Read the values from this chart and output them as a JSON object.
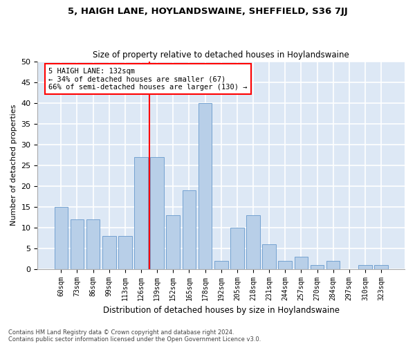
{
  "title1": "5, HAIGH LANE, HOYLANDSWAINE, SHEFFIELD, S36 7JJ",
  "title2": "Size of property relative to detached houses in Hoylandswaine",
  "xlabel": "Distribution of detached houses by size in Hoylandswaine",
  "ylabel": "Number of detached properties",
  "categories": [
    "60sqm",
    "73sqm",
    "86sqm",
    "99sqm",
    "113sqm",
    "126sqm",
    "139sqm",
    "152sqm",
    "165sqm",
    "178sqm",
    "192sqm",
    "205sqm",
    "218sqm",
    "231sqm",
    "244sqm",
    "257sqm",
    "270sqm",
    "284sqm",
    "297sqm",
    "310sqm",
    "323sqm"
  ],
  "values": [
    15,
    12,
    12,
    8,
    8,
    27,
    27,
    13,
    19,
    40,
    2,
    10,
    13,
    6,
    2,
    3,
    1,
    2,
    0,
    1,
    1
  ],
  "bar_color": "#b8cfe8",
  "bar_edge_color": "#6699cc",
  "background_color": "#dde8f5",
  "grid_color": "#ffffff",
  "vline_x_index": 5.5,
  "vline_color": "red",
  "annotation_text": "5 HAIGH LANE: 132sqm\n← 34% of detached houses are smaller (67)\n66% of semi-detached houses are larger (130) →",
  "annotation_box_color": "#ffffff",
  "annotation_box_edge": "red",
  "ylim": [
    0,
    50
  ],
  "yticks": [
    0,
    5,
    10,
    15,
    20,
    25,
    30,
    35,
    40,
    45,
    50
  ],
  "footnote1": "Contains HM Land Registry data © Crown copyright and database right 2024.",
  "footnote2": "Contains public sector information licensed under the Open Government Licence v3.0."
}
